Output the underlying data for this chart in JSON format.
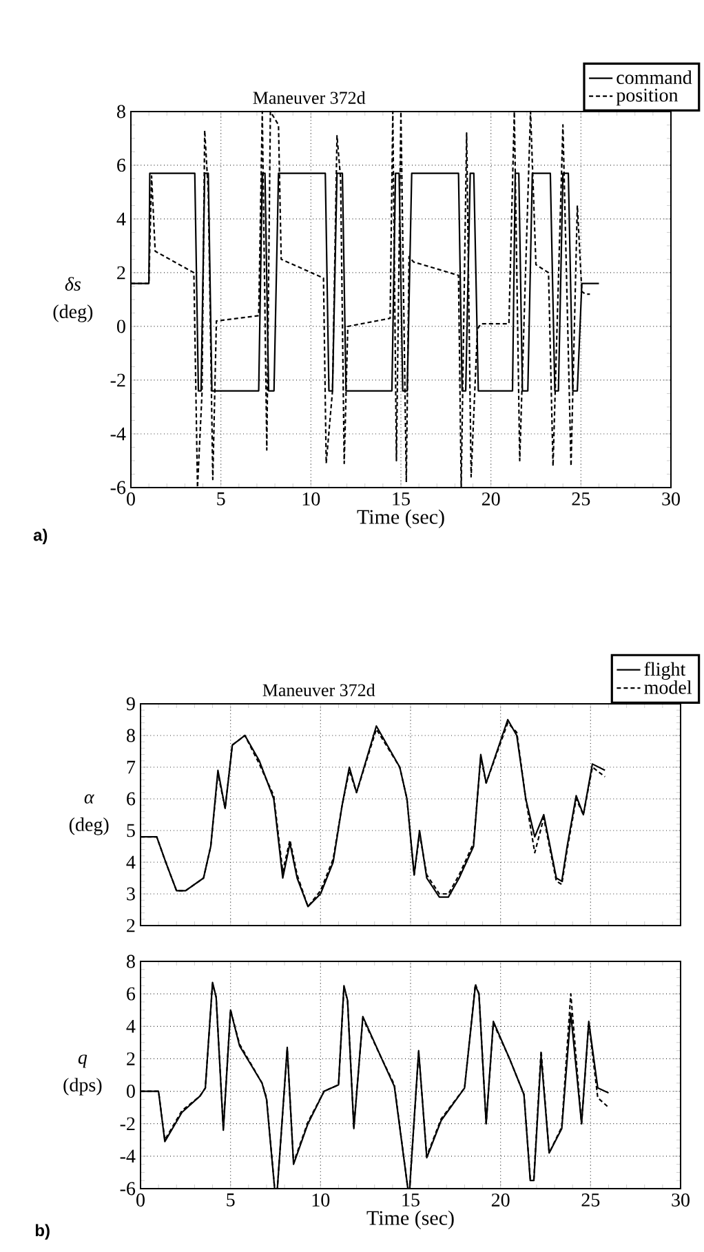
{
  "chart_data": [
    {
      "type": "line",
      "title": "Maneuver 372d",
      "xlabel": "Time  (sec)",
      "ylabel": "*δs* (deg)",
      "annotations": [
        "a)"
      ],
      "xlim": [
        0,
        30
      ],
      "xticks": [
        0,
        5,
        10,
        15,
        20,
        25,
        30
      ],
      "ylim": [
        -6,
        8
      ],
      "yticks": [
        -6,
        -4,
        -2,
        0,
        2,
        4,
        6,
        8
      ],
      "grid": true,
      "legend": "top right",
      "series": [
        {
          "name": "command",
          "color": "#000000",
          "line_style": "solid",
          "x": [
            0,
            1.0,
            1.05,
            3.55,
            3.75,
            3.9,
            4.1,
            4.3,
            4.5,
            7.1,
            7.3,
            7.45,
            7.65,
            7.95,
            8.2,
            10.8,
            11.0,
            11.2,
            11.45,
            11.75,
            11.95,
            14.5,
            14.7,
            14.9,
            15.1,
            15.35,
            15.6,
            18.2,
            18.4,
            18.6,
            18.85,
            19.05,
            19.3,
            21.2,
            21.35,
            21.55,
            21.75,
            22.05,
            22.3,
            23.3,
            23.55,
            23.75,
            24.0,
            24.3,
            24.55,
            24.8,
            25.05,
            26.0
          ],
          "values": [
            1.6,
            1.6,
            5.7,
            5.7,
            -2.4,
            -2.4,
            5.7,
            5.7,
            -2.4,
            -2.4,
            5.7,
            5.7,
            -2.4,
            -2.4,
            5.7,
            5.7,
            -2.4,
            -2.4,
            5.7,
            5.7,
            -2.4,
            -2.4,
            5.7,
            5.7,
            -2.4,
            -2.4,
            5.7,
            5.7,
            -2.4,
            -2.4,
            5.7,
            5.7,
            -2.4,
            -2.4,
            5.7,
            5.7,
            -2.4,
            -2.4,
            5.7,
            5.7,
            -2.4,
            -2.4,
            5.7,
            5.7,
            -2.4,
            -2.4,
            1.6,
            1.6
          ]
        },
        {
          "name": "position",
          "color": "#000000",
          "line_style": "dashed",
          "x": [
            0,
            1.0,
            1.15,
            1.35,
            3.5,
            3.7,
            3.95,
            4.1,
            4.3,
            4.55,
            4.75,
            7.1,
            7.3,
            7.55,
            7.75,
            8.2,
            8.35,
            10.7,
            10.85,
            11.2,
            11.45,
            11.65,
            11.85,
            12.05,
            14.4,
            14.55,
            14.75,
            15.0,
            15.3,
            15.45,
            15.7,
            18.2,
            18.35,
            18.65,
            18.9,
            19.25,
            19.45,
            21.0,
            21.3,
            21.6,
            22.2,
            22.5,
            23.2,
            23.45,
            24.0,
            24.45,
            24.8,
            25.05,
            25.25,
            25.5
          ],
          "values": [
            1.6,
            1.6,
            5.6,
            2.8,
            2.0,
            -6.0,
            -2.5,
            7.3,
            5.0,
            -5.7,
            0.2,
            0.4,
            8.0,
            -4.6,
            8.0,
            7.5,
            2.5,
            1.8,
            -5.1,
            -2.4,
            7.1,
            5.5,
            -5.1,
            0,
            0.3,
            8.0,
            -5.0,
            8.0,
            -5.8,
            2.6,
            2.4,
            1.9,
            -6.0,
            7.2,
            -5.6,
            -0.1,
            0.1,
            0.1,
            8.0,
            -5.0,
            8.0,
            2.3,
            2.0,
            -5.2,
            7.5,
            -5.2,
            4.5,
            1.3,
            1.2,
            1.2
          ]
        }
      ]
    },
    {
      "type": "line",
      "title": "Maneuver 372d",
      "ylabel": "*α* (deg)",
      "xlim": [
        0,
        30
      ],
      "xticks": [
        0,
        5,
        10,
        15,
        20,
        25,
        30
      ],
      "ylim": [
        2,
        9
      ],
      "yticks": [
        2,
        3,
        4,
        5,
        6,
        7,
        8,
        9
      ],
      "grid": true,
      "legend": "top right",
      "tick_labels": "y",
      "series": [
        {
          "name": "flight",
          "color": "#000000",
          "line_style": "solid",
          "x": [
            0,
            0.9,
            1.4,
            2.0,
            2.5,
            3.5,
            3.9,
            4.3,
            4.7,
            5.1,
            5.8,
            6.6,
            7.4,
            7.9,
            8.3,
            8.7,
            9.3,
            10.0,
            10.7,
            11.2,
            11.6,
            12.0,
            13.1,
            14.4,
            14.8,
            15.2,
            15.5,
            15.9,
            16.6,
            17.1,
            17.7,
            18.5,
            18.9,
            19.2,
            20.4,
            20.9,
            21.4,
            21.9,
            22.4,
            23.1,
            23.4,
            23.7,
            24.2,
            24.6,
            25.1,
            25.8
          ],
          "values": [
            4.8,
            4.8,
            4.0,
            3.1,
            3.1,
            3.5,
            4.5,
            6.9,
            5.7,
            7.7,
            8.0,
            7.2,
            6.0,
            3.5,
            4.6,
            3.5,
            2.6,
            3.0,
            4.0,
            5.8,
            7.0,
            6.2,
            8.3,
            7.0,
            6.0,
            3.6,
            5.0,
            3.5,
            2.9,
            2.9,
            3.5,
            4.5,
            7.4,
            6.5,
            8.5,
            8.0,
            6.0,
            4.8,
            5.5,
            3.5,
            3.4,
            4.5,
            6.1,
            5.5,
            7.1,
            6.9
          ]
        },
        {
          "name": "model",
          "color": "#000000",
          "line_style": "dashed",
          "x": [
            0,
            0.9,
            1.4,
            2.0,
            2.5,
            3.5,
            3.9,
            4.3,
            4.7,
            5.1,
            5.8,
            6.6,
            7.4,
            7.9,
            8.3,
            8.7,
            9.3,
            10.0,
            10.7,
            11.2,
            11.6,
            12.0,
            13.1,
            14.4,
            14.8,
            15.2,
            15.5,
            15.9,
            16.6,
            17.1,
            17.7,
            18.5,
            18.9,
            19.2,
            20.4,
            20.9,
            21.4,
            21.9,
            22.4,
            23.1,
            23.4,
            23.7,
            24.2,
            24.6,
            25.1,
            25.8
          ],
          "values": [
            4.8,
            4.8,
            4.0,
            3.1,
            3.1,
            3.5,
            4.5,
            6.8,
            5.7,
            7.7,
            8.0,
            7.1,
            6.1,
            3.7,
            4.7,
            3.6,
            2.6,
            3.1,
            4.1,
            5.8,
            6.9,
            6.2,
            8.2,
            7.0,
            6.0,
            3.6,
            4.9,
            3.6,
            3.0,
            3.0,
            3.6,
            4.6,
            7.3,
            6.5,
            8.4,
            8.1,
            6.0,
            4.3,
            5.4,
            3.4,
            3.3,
            4.4,
            6.0,
            5.5,
            7.0,
            6.7
          ]
        }
      ]
    },
    {
      "type": "line",
      "xlabel": "Time  (sec)",
      "ylabel": "*q* (dps)",
      "annotations": [
        "b)"
      ],
      "xlim": [
        0,
        30
      ],
      "xticks": [
        0,
        5,
        10,
        15,
        20,
        25,
        30
      ],
      "ylim": [
        -6,
        8
      ],
      "yticks": [
        -6,
        -4,
        -2,
        0,
        2,
        4,
        6,
        8
      ],
      "grid": true,
      "series": [
        {
          "color": "#000000",
          "line_style": "solid",
          "x": [
            0,
            1.0,
            1.35,
            2.3,
            3.3,
            3.6,
            4.0,
            4.2,
            4.6,
            5.0,
            5.5,
            6.75,
            7.0,
            7.45,
            7.6,
            8.15,
            8.5,
            9.3,
            10.2,
            11.0,
            11.3,
            11.5,
            11.85,
            12.35,
            13.4,
            14.1,
            14.85,
            14.95,
            15.45,
            15.9,
            16.7,
            18.0,
            18.6,
            18.8,
            19.2,
            19.6,
            20.5,
            21.3,
            21.65,
            21.85,
            22.25,
            22.7,
            23.4,
            23.9,
            24.5,
            24.9,
            25.4,
            26.0
          ],
          "values": [
            0,
            0,
            -3.1,
            -1.3,
            -0.3,
            0.2,
            6.7,
            5.8,
            -2.4,
            5.0,
            2.8,
            0.5,
            -0.5,
            -6.0,
            -6.0,
            2.7,
            -4.5,
            -2.0,
            0,
            0.4,
            6.5,
            5.6,
            -2.3,
            4.6,
            2.0,
            0.3,
            -6.0,
            -6.0,
            2.5,
            -4.1,
            -1.8,
            0.2,
            6.5,
            6.0,
            -2.0,
            4.3,
            2.0,
            -0.2,
            -5.5,
            -5.5,
            2.2,
            -3.8,
            -2.3,
            4.8,
            -2.0,
            4.3,
            0.2,
            -0.1
          ]
        },
        {
          "color": "#000000",
          "line_style": "dashed",
          "x": [
            0,
            1.0,
            1.35,
            2.3,
            3.3,
            3.6,
            4.0,
            4.2,
            4.6,
            5.0,
            5.5,
            6.75,
            7.0,
            7.45,
            7.6,
            8.15,
            8.5,
            9.3,
            10.2,
            11.0,
            11.3,
            11.5,
            11.85,
            12.35,
            13.4,
            14.1,
            14.85,
            14.95,
            15.45,
            15.9,
            16.7,
            18.0,
            18.6,
            18.8,
            19.2,
            19.6,
            20.5,
            21.3,
            21.65,
            21.85,
            22.25,
            22.7,
            23.4,
            23.9,
            24.5,
            24.9,
            25.4,
            26.0
          ],
          "values": [
            0,
            0,
            -3.0,
            -1.2,
            -0.3,
            0.2,
            6.6,
            5.8,
            -2.3,
            5.0,
            2.9,
            0.5,
            -0.4,
            -6.0,
            -6.0,
            2.6,
            -4.4,
            -1.9,
            0,
            0.4,
            6.4,
            5.6,
            -2.2,
            4.5,
            2.0,
            0.4,
            -6.0,
            -6.0,
            2.4,
            -4.0,
            -1.7,
            0.2,
            6.6,
            6.0,
            -2.0,
            4.2,
            2.0,
            -0.2,
            -5.4,
            -5.4,
            2.5,
            -3.8,
            -2.2,
            6.0,
            -2.0,
            4.2,
            -0.4,
            -1.0
          ]
        }
      ]
    }
  ]
}
